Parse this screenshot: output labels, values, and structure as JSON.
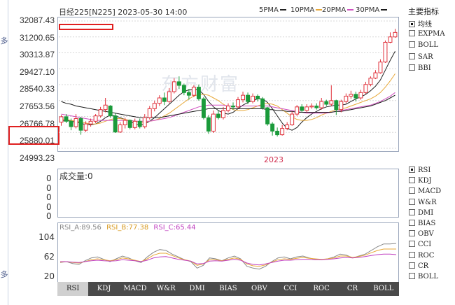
{
  "header": {
    "title": "日经225[N225] 2023-05-30 14:00"
  },
  "ma_legend": [
    {
      "label": "5PMA",
      "color": "#222222"
    },
    {
      "label": "10PMA",
      "color": "#e8a838"
    },
    {
      "label": "20PMA",
      "color": "#d050c0"
    },
    {
      "label": "30PMA",
      "color": "#1a1a1a"
    }
  ],
  "watermark": "东方财富",
  "side_tabs": [
    "多",
    "多"
  ],
  "right_panel": {
    "title": "主要指标",
    "main_items": [
      {
        "label": "均线",
        "checked": true
      },
      {
        "label": "EXPMA",
        "checked": false
      },
      {
        "label": "BOLL",
        "checked": false
      },
      {
        "label": "SAR",
        "checked": false
      },
      {
        "label": "BBI",
        "checked": false
      }
    ],
    "sub_items": [
      {
        "label": "RSI",
        "checked": true
      },
      {
        "label": "KDJ",
        "checked": false
      },
      {
        "label": "MACD",
        "checked": false
      },
      {
        "label": "W&R",
        "checked": false
      },
      {
        "label": "DMI",
        "checked": false
      },
      {
        "label": "BIAS",
        "checked": false
      },
      {
        "label": "OBV",
        "checked": false
      },
      {
        "label": "CCI",
        "checked": false
      },
      {
        "label": "ROC",
        "checked": false
      },
      {
        "label": "CR",
        "checked": false
      },
      {
        "label": "BOLL",
        "checked": false
      }
    ]
  },
  "volume": {
    "label": "成交量:0",
    "ticks": [
      "0",
      "0",
      "0",
      "0",
      "0"
    ]
  },
  "rsi": {
    "label_a": "RSI_A:89.56",
    "label_b": "RSI_B:77.38",
    "label_c": "RSI_C:65.44",
    "ticks": [
      "104",
      "62",
      "20"
    ],
    "color_a": "#888888",
    "color_b": "#e8a838",
    "color_c": "#c040c0"
  },
  "tabs": [
    "RSI",
    "KDJ",
    "MACD",
    "W&R",
    "DMI",
    "BIAS",
    "OBV",
    "CCI",
    "ROC",
    "CR",
    "BOLL"
  ],
  "active_tab": "RSI",
  "chart_data": {
    "type": "candlestick",
    "ylim": [
      24993.23,
      32087.43
    ],
    "yticks": [
      "32087.43",
      "31200.65",
      "30313.87",
      "29427.10",
      "28540.33",
      "27653.56",
      "26766.78",
      "25880.01",
      "24993.23"
    ],
    "x_label": "2023",
    "up_color": "#e0303a",
    "down_color": "#1a9a3a",
    "candles": [
      [
        26450,
        26750,
        26250,
        26850
      ],
      [
        26750,
        26500,
        26400,
        26900
      ],
      [
        26500,
        26200,
        26000,
        26650
      ],
      [
        26200,
        26650,
        26100,
        26900
      ],
      [
        26650,
        26000,
        25750,
        26750
      ],
      [
        26000,
        26350,
        25900,
        26500
      ],
      [
        26350,
        26500,
        26200,
        26650
      ],
      [
        26500,
        26800,
        26400,
        26900
      ],
      [
        26800,
        27150,
        26700,
        27300
      ],
      [
        27150,
        27400,
        27000,
        27800
      ],
      [
        27350,
        26800,
        26700,
        27400
      ],
      [
        26800,
        25900,
        25850,
        26950
      ],
      [
        25900,
        26300,
        25850,
        26450
      ],
      [
        26300,
        26550,
        26100,
        26700
      ],
      [
        26550,
        26150,
        26050,
        26600
      ],
      [
        26150,
        26500,
        26050,
        26650
      ],
      [
        26500,
        26200,
        26100,
        26650
      ],
      [
        26200,
        26700,
        26100,
        26900
      ],
      [
        26700,
        27200,
        26600,
        27350
      ],
      [
        27200,
        27500,
        27050,
        27650
      ],
      [
        27500,
        27800,
        27350,
        27950
      ],
      [
        27800,
        27600,
        27400,
        28100
      ],
      [
        27600,
        28150,
        27500,
        28350
      ],
      [
        28150,
        28700,
        28050,
        28900
      ],
      [
        28700,
        28500,
        28300,
        29000
      ],
      [
        28500,
        28100,
        27950,
        28600
      ],
      [
        28100,
        27950,
        27700,
        28300
      ],
      [
        27950,
        28400,
        27850,
        28500
      ],
      [
        28400,
        27750,
        27650,
        28550
      ],
      [
        27750,
        26700,
        26600,
        27850
      ],
      [
        26700,
        25950,
        25800,
        26850
      ],
      [
        25950,
        26900,
        25850,
        27100
      ],
      [
        26900,
        26700,
        26600,
        27100
      ],
      [
        26700,
        27100,
        26600,
        27300
      ],
      [
        27100,
        27350,
        27000,
        27500
      ],
      [
        27350,
        27300,
        27150,
        27550
      ],
      [
        27300,
        27700,
        27200,
        27850
      ],
      [
        27700,
        27950,
        27550,
        28150
      ],
      [
        27950,
        27600,
        27450,
        28100
      ],
      [
        27600,
        27900,
        27500,
        28050
      ],
      [
        27900,
        27750,
        27600,
        28000
      ],
      [
        27750,
        27250,
        27150,
        27850
      ],
      [
        27250,
        26350,
        26250,
        27300
      ],
      [
        26350,
        25950,
        25700,
        26450
      ],
      [
        25950,
        25750,
        25650,
        26150
      ],
      [
        25750,
        26100,
        25700,
        26300
      ],
      [
        26100,
        26300,
        26000,
        26450
      ],
      [
        26300,
        26900,
        26250,
        27050
      ],
      [
        26900,
        27300,
        26800,
        27400
      ],
      [
        27300,
        27100,
        27000,
        27450
      ],
      [
        27100,
        27300,
        27000,
        27450
      ],
      [
        27300,
        27350,
        27200,
        27500
      ],
      [
        27350,
        27250,
        27150,
        27500
      ],
      [
        27250,
        27600,
        27150,
        27800
      ],
      [
        27600,
        27450,
        27350,
        27700
      ],
      [
        27450,
        27650,
        27350,
        28500
      ],
      [
        27650,
        27150,
        26850,
        27700
      ],
      [
        27150,
        27600,
        27000,
        27700
      ],
      [
        27600,
        27900,
        27500,
        28050
      ],
      [
        27900,
        28000,
        27750,
        28200
      ],
      [
        28000,
        27800,
        27600,
        28150
      ],
      [
        27800,
        28100,
        27700,
        28250
      ],
      [
        28100,
        28550,
        28000,
        28700
      ],
      [
        28550,
        28900,
        28450,
        29000
      ],
      [
        28900,
        29200,
        28850,
        29350
      ],
      [
        29200,
        29800,
        29150,
        29950
      ],
      [
        29800,
        30900,
        29750,
        31000
      ],
      [
        30900,
        31200,
        30850,
        31450
      ],
      [
        31200,
        31450,
        31150,
        31650
      ]
    ],
    "series": [
      {
        "name": "5PMA",
        "color": "#222222",
        "values": [
          26500,
          26550,
          26500,
          26450,
          26400,
          26300,
          26300,
          26350,
          26500,
          26700,
          26850,
          26800,
          26700,
          26600,
          26500,
          26350,
          26300,
          26350,
          26500,
          26700,
          26950,
          27200,
          27450,
          27700,
          27950,
          28150,
          28250,
          28300,
          28250,
          28000,
          27600,
          27300,
          27100,
          26950,
          26900,
          27000,
          27200,
          27400,
          27550,
          27650,
          27750,
          27750,
          27550,
          27200,
          26800,
          26400,
          26100,
          26000,
          26150,
          26450,
          26700,
          26900,
          27050,
          27200,
          27300,
          27350,
          27400,
          27400,
          27450,
          27600,
          27750,
          27850,
          28000,
          28200,
          28450,
          28800,
          29350,
          29900,
          30400
        ]
      },
      {
        "name": "10PMA",
        "color": "#e8a838",
        "values": [
          26600,
          26600,
          26550,
          26500,
          26450,
          26400,
          26350,
          26350,
          26400,
          26500,
          26600,
          26650,
          26650,
          26600,
          26550,
          26500,
          26450,
          26450,
          26500,
          26550,
          26650,
          26800,
          26950,
          27150,
          27350,
          27550,
          27750,
          27900,
          28000,
          28000,
          27950,
          27800,
          27650,
          27450,
          27300,
          27150,
          27100,
          27100,
          27150,
          27250,
          27350,
          27450,
          27500,
          27450,
          27350,
          27150,
          26950,
          26750,
          26600,
          26550,
          26550,
          26600,
          26700,
          26850,
          26950,
          27050,
          27150,
          27200,
          27250,
          27350,
          27450,
          27550,
          27650,
          27750,
          27900,
          28100,
          28400,
          28750,
          29150
        ]
      },
      {
        "name": "20PMA",
        "color": "#d050c0",
        "values": [
          26900,
          26850,
          26800,
          26750,
          26700,
          26650,
          26600,
          26550,
          26550,
          26550,
          26550,
          26550,
          26550,
          26550,
          26550,
          26500,
          26500,
          26500,
          26500,
          26550,
          26600,
          26650,
          26700,
          26800,
          26900,
          27000,
          27100,
          27200,
          27300,
          27350,
          27400,
          27400,
          27400,
          27400,
          27350,
          27350,
          27350,
          27350,
          27350,
          27350,
          27350,
          27350,
          27350,
          27300,
          27250,
          27200,
          27150,
          27100,
          27050,
          27000,
          26950,
          26950,
          26950,
          26950,
          26950,
          27000,
          27050,
          27100,
          27150,
          27200,
          27250,
          27300,
          27350,
          27400,
          27500,
          27600,
          27750,
          27900,
          28100
        ]
      },
      {
        "name": "30PMA",
        "color": "#1a1a1a",
        "values": [
          27600,
          27500,
          27450,
          27350,
          27300,
          27250,
          27200,
          27150,
          27100,
          27050,
          27000,
          26950,
          26900,
          26850,
          26800,
          26750,
          26700,
          26700,
          26700,
          26700,
          26700,
          26750,
          26800,
          26850,
          26900,
          26950,
          27000,
          27050,
          27100,
          27150,
          27200,
          27200,
          27200,
          27200,
          27200,
          27200,
          27200,
          27200,
          27200,
          27200,
          27200,
          27200,
          27150,
          27150,
          27100,
          27100,
          27050,
          27050,
          27000,
          27000,
          27000,
          27000,
          27000,
          27000,
          27000,
          27000,
          27050,
          27050,
          27100,
          27150,
          27200,
          27250,
          27300,
          27350,
          27450,
          27550,
          27650,
          27800,
          27950
        ]
      }
    ],
    "rsi_series": {
      "ylim": [
        20,
        104
      ],
      "a": [
        48,
        50,
        46,
        44,
        52,
        58,
        60,
        55,
        50,
        56,
        62,
        58,
        52,
        48,
        60,
        70,
        76,
        74,
        66,
        60,
        54,
        50,
        36,
        42,
        58,
        56,
        52,
        58,
        62,
        56,
        40,
        36,
        34,
        40,
        50,
        58,
        60,
        56,
        60,
        62,
        58,
        55,
        54,
        56,
        60,
        66,
        64,
        58,
        62,
        66,
        74,
        82,
        88,
        88,
        89
      ],
      "b": [
        49,
        50,
        48,
        47,
        50,
        54,
        56,
        54,
        52,
        54,
        58,
        56,
        53,
        50,
        56,
        64,
        68,
        68,
        63,
        58,
        54,
        51,
        42,
        45,
        54,
        54,
        52,
        55,
        58,
        55,
        45,
        41,
        40,
        43,
        49,
        54,
        56,
        55,
        57,
        59,
        57,
        56,
        55,
        56,
        58,
        62,
        62,
        59,
        61,
        64,
        69,
        74,
        77,
        77,
        77
      ],
      "c": [
        50,
        50,
        49,
        48,
        50,
        52,
        53,
        52,
        51,
        52,
        54,
        53,
        52,
        50,
        53,
        58,
        60,
        61,
        58,
        55,
        53,
        51,
        45,
        46,
        51,
        52,
        51,
        53,
        55,
        53,
        47,
        44,
        43,
        45,
        48,
        51,
        53,
        53,
        54,
        55,
        55,
        54,
        54,
        55,
        56,
        58,
        59,
        58,
        59,
        61,
        63,
        65,
        66,
        66,
        65
      ]
    }
  }
}
